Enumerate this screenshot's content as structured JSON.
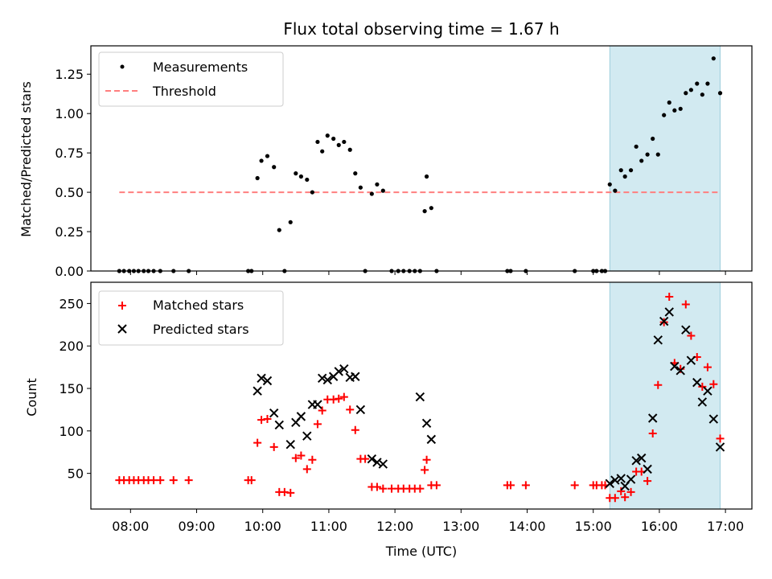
{
  "chart_data": {
    "type": "scatter",
    "title": "Flux total observing time = 1.67 h",
    "shaded_interval": {
      "start": 15.25,
      "end": 16.92,
      "color": "#add8e6"
    },
    "x_tick_labels": [
      "08:00",
      "09:00",
      "10:00",
      "11:00",
      "12:00",
      "13:00",
      "14:00",
      "15:00",
      "16:00",
      "17:00"
    ],
    "xlabel": "Time (UTC)",
    "top": {
      "ylabel": "Matched/Predicted stars",
      "ylim": [
        0,
        1.43
      ],
      "yticks": [
        "0.00",
        "0.25",
        "0.50",
        "0.75",
        "1.00",
        "1.25"
      ],
      "threshold": {
        "value": 0.5,
        "x_range": [
          7.83,
          16.92
        ],
        "color": "#ff7f7f"
      },
      "legend": {
        "measurements": "Measurements",
        "threshold": "Threshold"
      },
      "series": {
        "name": "Measurements",
        "x": [
          7.83,
          7.9,
          7.98,
          8.05,
          8.12,
          8.2,
          8.27,
          8.35,
          8.45,
          8.65,
          8.88,
          9.78,
          9.83,
          9.92,
          9.98,
          10.07,
          10.17,
          10.25,
          10.33,
          10.42,
          10.5,
          10.58,
          10.67,
          10.75,
          10.83,
          10.9,
          10.98,
          11.07,
          11.15,
          11.23,
          11.32,
          11.4,
          11.48,
          11.55,
          11.65,
          11.73,
          11.82,
          11.95,
          12.05,
          12.13,
          12.22,
          12.3,
          12.38,
          12.45,
          12.48,
          12.55,
          12.63,
          13.7,
          13.75,
          13.98,
          14.72,
          15.0,
          15.05,
          15.13,
          15.18,
          15.25,
          15.33,
          15.42,
          15.48,
          15.57,
          15.65,
          15.73,
          15.82,
          15.9,
          15.98,
          16.07,
          16.15,
          16.23,
          16.32,
          16.4,
          16.48,
          16.57,
          16.65,
          16.73,
          16.82,
          16.92
        ],
        "y": [
          0,
          0,
          0,
          0,
          0,
          0,
          0,
          0,
          0,
          0,
          0,
          0,
          0,
          0.59,
          0.7,
          0.73,
          0.66,
          0.26,
          0,
          0.31,
          0.62,
          0.6,
          0.58,
          0.5,
          0.82,
          0.76,
          0.86,
          0.84,
          0.8,
          0.82,
          0.77,
          0.62,
          0.53,
          0,
          0.49,
          0.55,
          0.51,
          0,
          0,
          0,
          0,
          0,
          0,
          0.38,
          0.6,
          0.4,
          0,
          0,
          0,
          0,
          0,
          0,
          0,
          0,
          0,
          0.55,
          0.51,
          0.64,
          0.6,
          0.64,
          0.79,
          0.7,
          0.74,
          0.84,
          0.74,
          0.99,
          1.07,
          1.02,
          1.03,
          1.13,
          1.15,
          1.19,
          1.12,
          1.19,
          1.35,
          1.13
        ]
      }
    },
    "bottom": {
      "ylabel": "Count",
      "ylim": [
        8,
        275
      ],
      "yticks": [
        "50",
        "100",
        "150",
        "200",
        "250"
      ],
      "legend": {
        "matched": "Matched stars",
        "predicted": "Predicted stars"
      },
      "matched": {
        "name": "Matched stars",
        "color": "#ff0000",
        "x": [
          7.83,
          7.9,
          7.98,
          8.05,
          8.12,
          8.2,
          8.27,
          8.35,
          8.45,
          8.65,
          8.88,
          9.78,
          9.83,
          9.92,
          9.98,
          10.07,
          10.17,
          10.25,
          10.33,
          10.42,
          10.5,
          10.58,
          10.67,
          10.75,
          10.83,
          10.9,
          10.98,
          11.07,
          11.15,
          11.23,
          11.32,
          11.4,
          11.48,
          11.55,
          11.65,
          11.73,
          11.82,
          11.95,
          12.05,
          12.13,
          12.22,
          12.3,
          12.38,
          12.45,
          12.48,
          12.55,
          12.63,
          13.7,
          13.75,
          13.98,
          14.72,
          15.0,
          15.05,
          15.13,
          15.18,
          15.25,
          15.33,
          15.42,
          15.48,
          15.57,
          15.65,
          15.73,
          15.82,
          15.9,
          15.98,
          16.07,
          16.15,
          16.23,
          16.32,
          16.4,
          16.48,
          16.57,
          16.65,
          16.73,
          16.82,
          16.92
        ],
        "y": [
          42,
          42,
          42,
          42,
          42,
          42,
          42,
          42,
          42,
          42,
          42,
          42,
          42,
          86,
          113,
          114,
          81,
          28,
          28,
          27,
          68,
          71,
          55,
          66,
          108,
          124,
          137,
          137,
          138,
          140,
          125,
          101,
          67,
          67,
          34,
          34,
          32,
          32,
          32,
          32,
          32,
          32,
          32,
          54,
          66,
          36,
          36,
          36,
          36,
          36,
          36,
          36,
          36,
          36,
          36,
          21,
          21,
          29,
          22,
          28,
          52,
          52,
          41,
          97,
          154,
          228,
          258,
          180,
          173,
          249,
          212,
          187,
          152,
          175,
          155,
          91
        ]
      },
      "predicted": {
        "name": "Predicted stars",
        "color": "#000000",
        "x": [
          9.92,
          9.98,
          10.07,
          10.17,
          10.25,
          10.42,
          10.5,
          10.58,
          10.67,
          10.75,
          10.83,
          10.9,
          10.98,
          11.07,
          11.15,
          11.23,
          11.32,
          11.4,
          11.48,
          11.65,
          11.73,
          11.82,
          12.38,
          12.48,
          12.55,
          15.25,
          15.33,
          15.42,
          15.48,
          15.57,
          15.65,
          15.73,
          15.82,
          15.9,
          15.98,
          16.07,
          16.15,
          16.23,
          16.32,
          16.4,
          16.48,
          16.57,
          16.65,
          16.73,
          16.82,
          16.92
        ],
        "y": [
          147,
          162,
          159,
          121,
          107,
          84,
          110,
          117,
          94,
          131,
          131,
          162,
          160,
          164,
          170,
          173,
          163,
          164,
          125,
          67,
          63,
          61,
          140,
          109,
          90,
          38,
          42,
          44,
          35,
          43,
          65,
          68,
          55,
          115,
          207,
          229,
          240,
          176,
          171,
          219,
          183,
          157,
          134,
          147,
          114,
          81
        ]
      }
    }
  }
}
